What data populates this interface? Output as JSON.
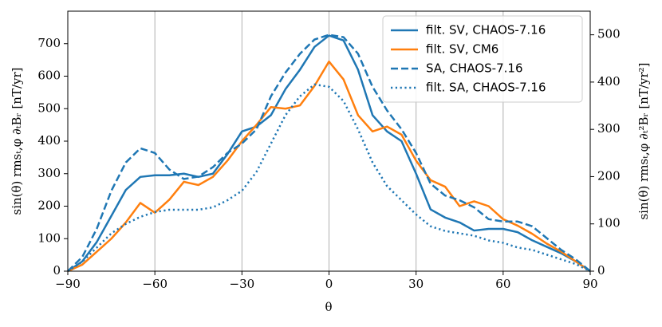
{
  "chart_data": {
    "type": "line",
    "x": [
      -90,
      -85,
      -80,
      -75,
      -70,
      -65,
      -60,
      -55,
      -50,
      -45,
      -40,
      -35,
      -30,
      -25,
      -20,
      -15,
      -10,
      -5,
      0,
      5,
      10,
      15,
      20,
      25,
      30,
      35,
      40,
      45,
      50,
      55,
      60,
      65,
      70,
      75,
      80,
      85,
      90
    ],
    "xlabel": "θ",
    "ylabel": "sin(θ) rmsₜ,φ ∂ₜBᵣ [nT/yr]",
    "y2label": "sin(θ) rmsₜ,φ ∂ₜ²Bᵣ [nT/yr²]",
    "xlim": [
      -90,
      90
    ],
    "xticks": [
      {
        "value": -90,
        "label": "−90"
      },
      {
        "value": -60,
        "label": "−60"
      },
      {
        "value": -30,
        "label": "−30"
      },
      0,
      30,
      60,
      90
    ],
    "ylim": [
      0,
      800
    ],
    "yticks": [
      0,
      100,
      200,
      300,
      400,
      500,
      600,
      700
    ],
    "y2lim": [
      0,
      550
    ],
    "y2ticks": [
      0,
      100,
      200,
      300,
      400,
      500
    ],
    "grid": "x",
    "legend": "upper right",
    "series": [
      {
        "name": "filt. SV, CHAOS-7.16",
        "color": "#1f77b4",
        "dash": "solid",
        "values": [
          0,
          30,
          90,
          170,
          250,
          290,
          295,
          295,
          300,
          290,
          300,
          360,
          430,
          445,
          480,
          560,
          620,
          690,
          725,
          710,
          620,
          480,
          430,
          400,
          300,
          190,
          165,
          150,
          125,
          130,
          130,
          120,
          95,
          75,
          55,
          30,
          0
        ]
      },
      {
        "name": "filt. SV, CM6",
        "color": "#ff7f0e",
        "dash": "solid",
        "values": [
          0,
          20,
          60,
          100,
          150,
          210,
          180,
          220,
          275,
          265,
          290,
          340,
          400,
          450,
          505,
          500,
          510,
          570,
          645,
          590,
          480,
          430,
          445,
          420,
          340,
          280,
          260,
          200,
          215,
          200,
          160,
          140,
          115,
          85,
          60,
          30,
          0
        ]
      },
      {
        "name": "SA, CHAOS-7.16",
        "color": "#1f77b4",
        "dash": "dashed",
        "axis": "y2",
        "values": [
          0,
          30,
          90,
          170,
          230,
          260,
          250,
          215,
          195,
          200,
          220,
          250,
          270,
          300,
          370,
          420,
          460,
          490,
          500,
          495,
          460,
          390,
          340,
          300,
          250,
          185,
          160,
          150,
          135,
          110,
          105,
          105,
          95,
          70,
          45,
          25,
          0
        ]
      },
      {
        "name": "filt. SA, CHAOS-7.16",
        "color": "#1f77b4",
        "dash": "dotted",
        "axis": "y2",
        "values": [
          0,
          20,
          50,
          80,
          100,
          115,
          125,
          130,
          130,
          130,
          135,
          150,
          170,
          210,
          270,
          330,
          370,
          395,
          390,
          360,
          300,
          230,
          180,
          150,
          120,
          95,
          85,
          80,
          75,
          65,
          60,
          50,
          45,
          35,
          25,
          15,
          0
        ]
      }
    ]
  }
}
